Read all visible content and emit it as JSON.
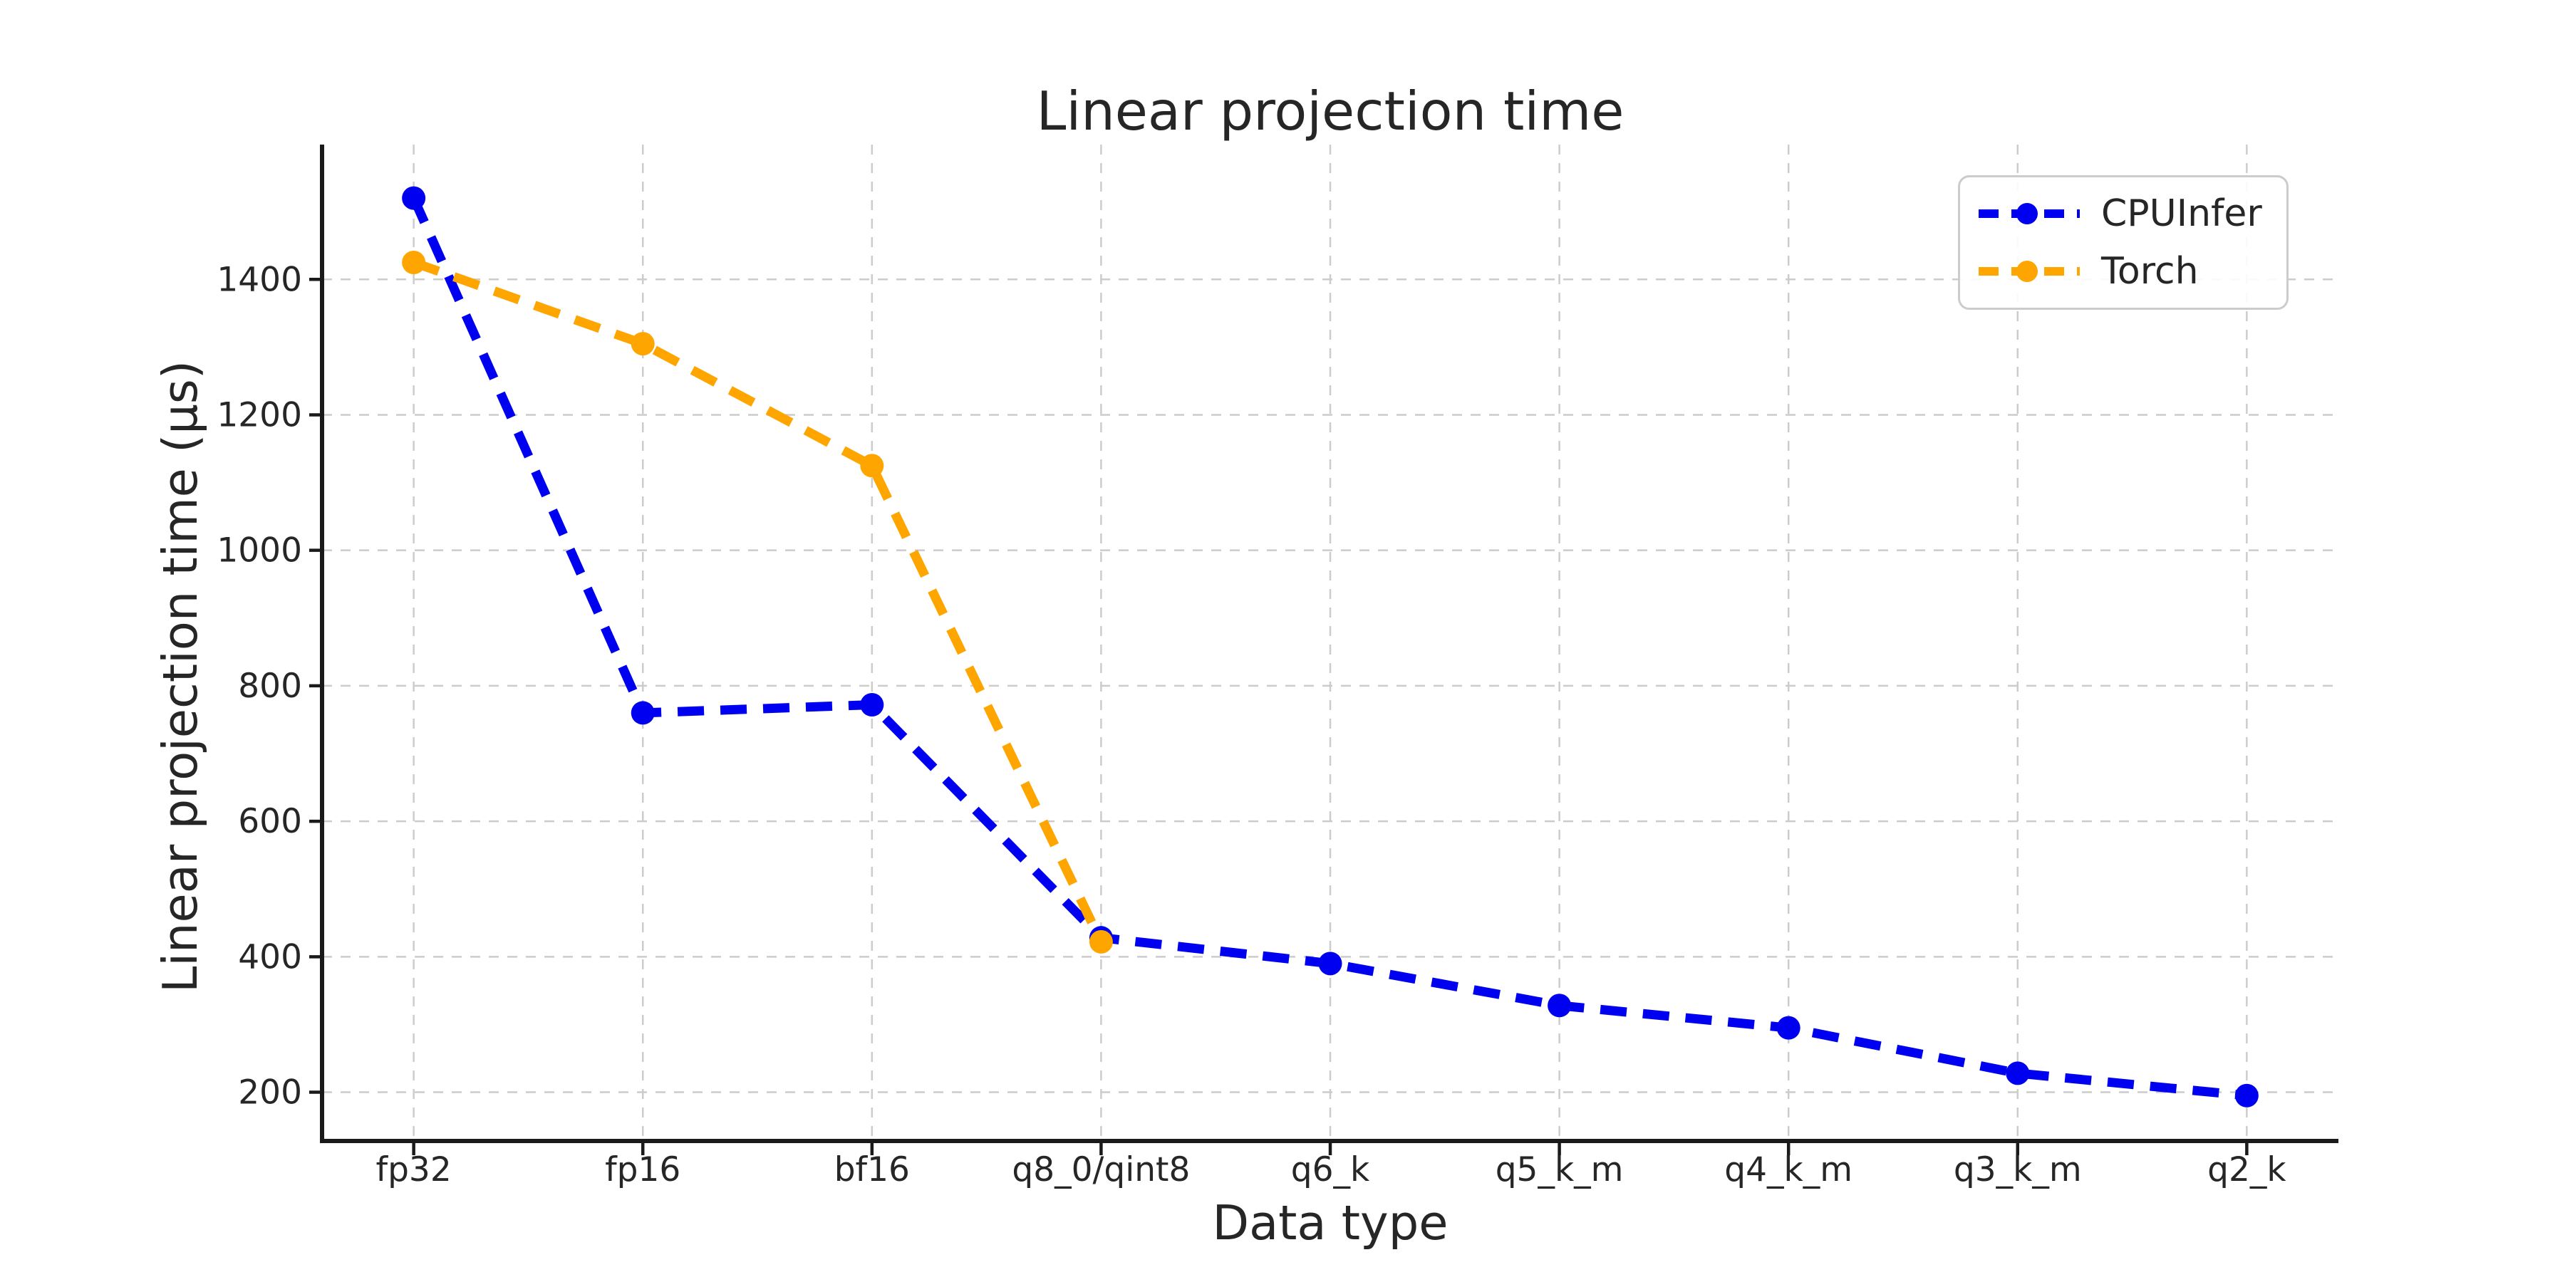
{
  "chart_data": {
    "type": "line",
    "title": "Linear projection time",
    "xlabel": "Data type",
    "ylabel": "Linear projection time (μs)",
    "categories": [
      "fp32",
      "fp16",
      "bf16",
      "q8_0/qint8",
      "q6_k",
      "q5_k_m",
      "q4_k_m",
      "q3_k_m",
      "q2_k"
    ],
    "series": [
      {
        "name": "CPUInfer",
        "color": "#0000f0",
        "values": [
          1520,
          760,
          772,
          428,
          390,
          328,
          295,
          228,
          195
        ]
      },
      {
        "name": "Torch",
        "color": "#ffa500",
        "values": [
          1425,
          1305,
          1125,
          422
        ]
      }
    ],
    "yticks": [
      200,
      400,
      600,
      800,
      1000,
      1200,
      1400
    ],
    "ylim": [
      128,
      1599
    ],
    "grid": true,
    "grid_color": "#cccccc",
    "spine_color": "#1a1a1a",
    "text_color": "#262626",
    "line_style": "dashed",
    "marker": "circle",
    "legend_position": "upper right"
  }
}
